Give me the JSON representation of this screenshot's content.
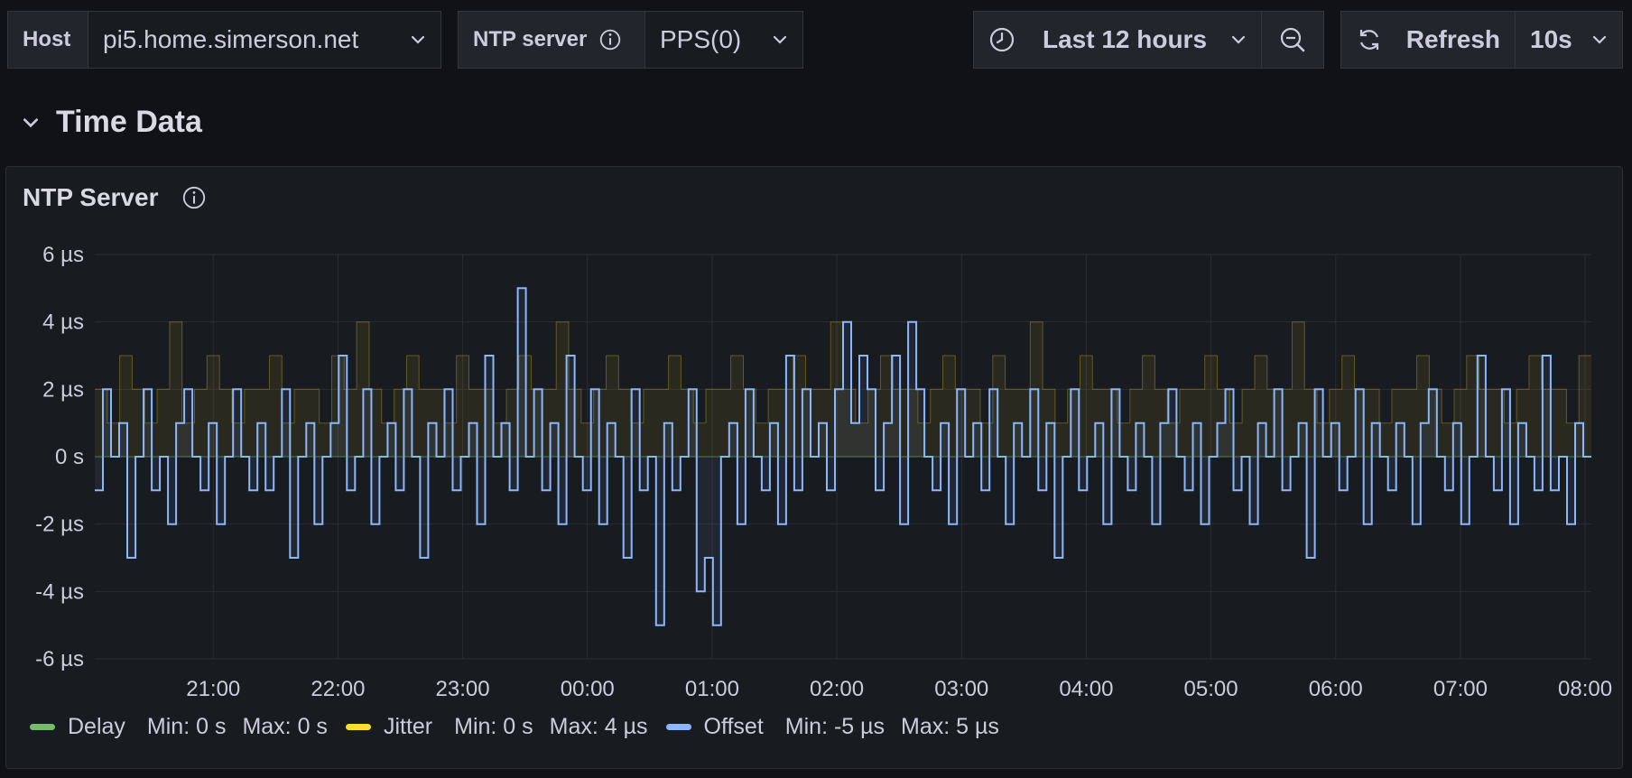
{
  "toolbar": {
    "host_label": "Host",
    "host_value": "pi5.home.simerson.net",
    "ntp_label": "NTP server",
    "ntp_value": "PPS(0)",
    "time_range": "Last 12 hours",
    "refresh_label": "Refresh",
    "refresh_interval": "10s"
  },
  "row": {
    "title": "Time Data"
  },
  "panel": {
    "title": "NTP Server"
  },
  "legend": [
    {
      "name": "Delay",
      "min": "Min: 0 s",
      "max": "Max: 0 s",
      "color": "#73bf69"
    },
    {
      "name": "Jitter",
      "min": "Min: 0 s",
      "max": "Max: 4 µs",
      "color": "#fade2a"
    },
    {
      "name": "Offset",
      "min": "Min: -5 µs",
      "max": "Max: 5 µs",
      "color": "#8ab8ff"
    }
  ],
  "chart_data": {
    "type": "line",
    "x_ticks": [
      "21:00",
      "22:00",
      "23:00",
      "00:00",
      "01:00",
      "02:00",
      "03:00",
      "04:00",
      "05:00",
      "06:00",
      "07:00",
      "08:00"
    ],
    "y_ticks": [
      "6 µs",
      "4 µs",
      "2 µs",
      "0 s",
      "-2 µs",
      "-4 µs",
      "-6 µs"
    ],
    "ylim": [
      -6,
      6
    ],
    "x_range_hours": [
      20.05,
      32.05
    ],
    "grid": true,
    "series": [
      {
        "name": "Delay",
        "color": "#73bf69",
        "values": [
          0,
          0
        ]
      },
      {
        "name": "Jitter",
        "color": "#fade2a",
        "values": [
          2,
          1,
          3,
          2,
          1,
          2,
          4,
          1,
          2,
          3,
          2,
          1,
          2,
          2,
          3,
          1,
          2,
          2,
          1,
          3,
          2,
          4,
          2,
          1,
          2,
          3,
          2,
          2,
          1,
          3,
          2,
          2,
          1,
          2,
          3,
          2,
          2,
          4,
          2,
          1,
          2,
          3,
          2,
          1,
          2,
          2,
          3,
          2,
          1,
          2,
          2,
          3,
          2,
          1,
          2,
          2,
          3,
          2,
          2,
          4,
          2,
          1,
          2,
          3,
          2,
          2,
          1,
          2,
          3,
          2,
          2,
          1,
          3,
          2,
          2,
          4,
          2,
          1,
          2,
          3,
          2,
          2,
          1,
          2,
          3,
          2,
          1,
          2,
          2,
          3,
          2,
          1,
          2,
          3,
          2,
          2,
          4,
          2,
          1,
          2,
          3,
          2,
          2,
          1,
          2,
          2,
          3,
          2,
          1,
          2,
          3,
          2,
          2,
          1,
          2,
          3,
          2,
          2,
          1,
          3
        ]
      },
      {
        "name": "Offset",
        "color": "#8ab8ff",
        "values": [
          -1,
          2,
          0,
          1,
          -3,
          0,
          2,
          -1,
          0,
          -2,
          1,
          2,
          0,
          -1,
          1,
          -2,
          0,
          2,
          0,
          -1,
          1,
          -1,
          0,
          2,
          -3,
          0,
          1,
          -2,
          0,
          1,
          3,
          -1,
          0,
          2,
          -2,
          0,
          1,
          -1,
          2,
          0,
          -3,
          1,
          0,
          2,
          -1,
          0,
          1,
          -2,
          3,
          0,
          1,
          -1,
          5,
          0,
          2,
          -1,
          1,
          -2,
          3,
          0,
          -1,
          2,
          -2,
          1,
          0,
          -3,
          2,
          -1,
          0,
          -5,
          1,
          -1,
          0,
          2,
          -4,
          -3,
          -5,
          0,
          1,
          -2,
          2,
          0,
          -1,
          1,
          -2,
          3,
          -1,
          2,
          0,
          1,
          -1,
          2,
          4,
          1,
          3,
          2,
          -1,
          1,
          3,
          -2,
          4,
          2,
          0,
          -1,
          1,
          -2,
          2,
          0,
          1,
          -1,
          2,
          0,
          -2,
          1,
          0,
          2,
          -1,
          1,
          -3,
          0,
          2,
          -1,
          0,
          1,
          -2,
          2,
          0,
          -1,
          1,
          0,
          -2,
          1,
          2,
          0,
          -1,
          1,
          -2,
          0,
          1,
          2,
          -1,
          0,
          -2,
          1,
          0,
          2,
          -1,
          0,
          1,
          -3,
          2,
          0,
          1,
          -1,
          0,
          2,
          -2,
          1,
          0,
          -1,
          1,
          0,
          -2,
          1,
          2,
          0,
          -1,
          1,
          -2,
          0,
          3,
          0,
          -1,
          2,
          -2,
          1,
          0,
          -1,
          3,
          -1,
          0,
          -2,
          1,
          0
        ]
      }
    ]
  }
}
